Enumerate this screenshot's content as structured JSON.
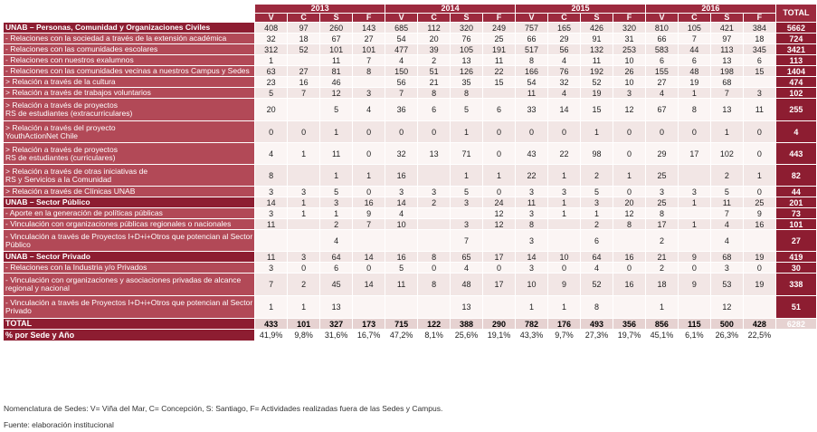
{
  "years": [
    "2013",
    "2014",
    "2015",
    "2016"
  ],
  "total_header": "TOTAL",
  "sub_headers": [
    "V",
    "C",
    "S",
    "F"
  ],
  "rows": [
    {
      "label": "UNAB – Personas, Comunidad y Organizaciones Civiles",
      "kind": "cat",
      "h": 12,
      "vals": [
        "408",
        "97",
        "260",
        "143",
        "685",
        "112",
        "320",
        "249",
        "757",
        "165",
        "426",
        "320",
        "810",
        "105",
        "421",
        "384"
      ],
      "total": "5662"
    },
    {
      "label": "- Relaciones con la sociedad a través de la extensión académica",
      "kind": "sub",
      "h": 12,
      "vals": [
        "32",
        "18",
        "67",
        "27",
        "54",
        "20",
        "76",
        "25",
        "66",
        "29",
        "91",
        "31",
        "66",
        "7",
        "97",
        "18"
      ],
      "total": "724"
    },
    {
      "label": "- Relaciones con las comunidades escolares",
      "kind": "sub",
      "h": 12,
      "vals": [
        "312",
        "52",
        "101",
        "101",
        "477",
        "39",
        "105",
        "191",
        "517",
        "56",
        "132",
        "253",
        "583",
        "44",
        "113",
        "345"
      ],
      "total": "3421"
    },
    {
      "label": "- Relaciones con nuestros exalumnos",
      "kind": "sub",
      "h": 12,
      "vals": [
        "1",
        "",
        "11",
        "7",
        "4",
        "2",
        "13",
        "11",
        "8",
        "4",
        "11",
        "10",
        "6",
        "6",
        "13",
        "6"
      ],
      "total": "113"
    },
    {
      "label": "- Relaciones con las comunidades vecinas a nuestros Campus y Sedes",
      "kind": "sub",
      "h": 12,
      "vals": [
        "63",
        "27",
        "81",
        "8",
        "150",
        "51",
        "126",
        "22",
        "166",
        "76",
        "192",
        "26",
        "155",
        "48",
        "198",
        "15"
      ],
      "total": "1404"
    },
    {
      "label": "> Relación a través de la cultura",
      "kind": "sub",
      "h": 12,
      "vals": [
        "23",
        "16",
        "46",
        "",
        "56",
        "21",
        "35",
        "15",
        "54",
        "32",
        "52",
        "10",
        "27",
        "19",
        "68",
        ""
      ],
      "total": "474"
    },
    {
      "label": "> Relación a través de trabajos voluntarios",
      "kind": "sub",
      "h": 12,
      "vals": [
        "5",
        "7",
        "12",
        "3",
        "7",
        "8",
        "8",
        "",
        "11",
        "4",
        "19",
        "3",
        "4",
        "1",
        "7",
        "3"
      ],
      "total": "102"
    },
    {
      "label": "> Relación a través de proyectos|RS de estudiantes (extracurriculares)",
      "kind": "sub",
      "h": 25,
      "vals": [
        "20",
        "",
        "5",
        "4",
        "36",
        "6",
        "5",
        "6",
        "33",
        "14",
        "15",
        "12",
        "67",
        "8",
        "13",
        "11"
      ],
      "total": "255"
    },
    {
      "label": "> Relación a través del proyecto|YouthActionNet Chile",
      "kind": "sub",
      "h": 24,
      "vals": [
        "0",
        "0",
        "1",
        "0",
        "0",
        "0",
        "1",
        "0",
        "0",
        "0",
        "1",
        "0",
        "0",
        "0",
        "1",
        "0"
      ],
      "total": "4"
    },
    {
      "label": "> Relación a través de proyectos|RS de estudiantes (curriculares)",
      "kind": "sub",
      "h": 24,
      "vals": [
        "4",
        "1",
        "11",
        "0",
        "32",
        "13",
        "71",
        "0",
        "43",
        "22",
        "98",
        "0",
        "29",
        "17",
        "102",
        "0"
      ],
      "total": "443"
    },
    {
      "label": "> Relación a través de otras iniciativas de|RS y Servicios a la Comunidad",
      "kind": "sub",
      "h": 24,
      "vals": [
        "8",
        "",
        "1",
        "1",
        "16",
        "",
        "1",
        "1",
        "22",
        "1",
        "2",
        "1",
        "25",
        "",
        "2",
        "1"
      ],
      "total": "82"
    },
    {
      "label": "> Relación a través de Clínicas UNAB",
      "kind": "sub",
      "h": 12,
      "vals": [
        "3",
        "3",
        "5",
        "0",
        "3",
        "3",
        "5",
        "0",
        "3",
        "3",
        "5",
        "0",
        "3",
        "3",
        "5",
        "0"
      ],
      "total": "44"
    },
    {
      "label": "UNAB – Sector Público",
      "kind": "cat",
      "h": 12,
      "vals": [
        "14",
        "1",
        "3",
        "16",
        "14",
        "2",
        "3",
        "24",
        "11",
        "1",
        "3",
        "20",
        "25",
        "1",
        "11",
        "25"
      ],
      "total": "201"
    },
    {
      "label": "- Aporte en la generación de políticas públicas",
      "kind": "sub",
      "h": 12,
      "vals": [
        "3",
        "1",
        "1",
        "9",
        "4",
        "",
        "",
        "12",
        "3",
        "1",
        "1",
        "12",
        "8",
        "",
        "7",
        "9"
      ],
      "total": "73"
    },
    {
      "label": "- Vinculación con organizaciones públicas regionales o nacionales",
      "kind": "sub",
      "h": 12,
      "vals": [
        "11",
        "",
        "2",
        "7",
        "10",
        "",
        "3",
        "12",
        "8",
        "",
        "2",
        "8",
        "17",
        "1",
        "4",
        "16"
      ],
      "total": "101"
    },
    {
      "label": "- Vinculación a través de Proyectos I+D+i+Otros que potencian al Sector|Público",
      "kind": "sub",
      "h": 24,
      "vals": [
        "",
        "",
        "4",
        "",
        "",
        "",
        "7",
        "",
        "3",
        "",
        "6",
        "",
        "2",
        "",
        "4",
        ""
      ],
      "total": "27"
    },
    {
      "label": "UNAB – Sector Privado",
      "kind": "cat",
      "h": 12,
      "vals": [
        "11",
        "3",
        "64",
        "14",
        "16",
        "8",
        "65",
        "17",
        "14",
        "10",
        "64",
        "16",
        "21",
        "9",
        "68",
        "19"
      ],
      "total": "419"
    },
    {
      "label": "- Relaciones con la Industria y/o Privados",
      "kind": "sub",
      "h": 12,
      "vals": [
        "3",
        "0",
        "6",
        "0",
        "5",
        "0",
        "4",
        "0",
        "3",
        "0",
        "4",
        "0",
        "2",
        "0",
        "3",
        "0"
      ],
      "total": "30"
    },
    {
      "label": "- Vinculación con organizaciones y asociaciones privadas de alcance|regional y nacional",
      "kind": "sub",
      "h": 25,
      "vals": [
        "7",
        "2",
        "45",
        "14",
        "11",
        "8",
        "48",
        "17",
        "10",
        "9",
        "52",
        "16",
        "18",
        "9",
        "53",
        "19"
      ],
      "total": "338"
    },
    {
      "label": "- Vinculación a través de Proyectos I+D+i+Otros que potencian al Sector|Privado",
      "kind": "sub",
      "h": 25,
      "vals": [
        "1",
        "1",
        "13",
        "",
        "",
        "",
        "13",
        "",
        "1",
        "1",
        "8",
        "",
        "1",
        "",
        "12",
        ""
      ],
      "total": "51"
    }
  ],
  "total_row": {
    "label": "TOTAL",
    "vals": [
      "433",
      "101",
      "327",
      "173",
      "715",
      "122",
      "388",
      "290",
      "782",
      "176",
      "493",
      "356",
      "856",
      "115",
      "500",
      "428"
    ],
    "total": "6282"
  },
  "pct_row": {
    "label": "% por Sede y Año",
    "vals": [
      "41,9%",
      "9,8%",
      "31,6%",
      "16,7%",
      "47,2%",
      "8,1%",
      "25,6%",
      "19,1%",
      "43,3%",
      "9,7%",
      "27,3%",
      "19,7%",
      "45,1%",
      "6,1%",
      "26,3%",
      "22,5%"
    ],
    "total": ""
  },
  "notes": {
    "nomenclature": "Nomenclatura de Sedes: V= Viña del Mar, C= Concepción, S: Santiago, F= Actividades realizadas fuera de las Sedes y Campus.",
    "source": "Fuente: elaboración institucional"
  }
}
